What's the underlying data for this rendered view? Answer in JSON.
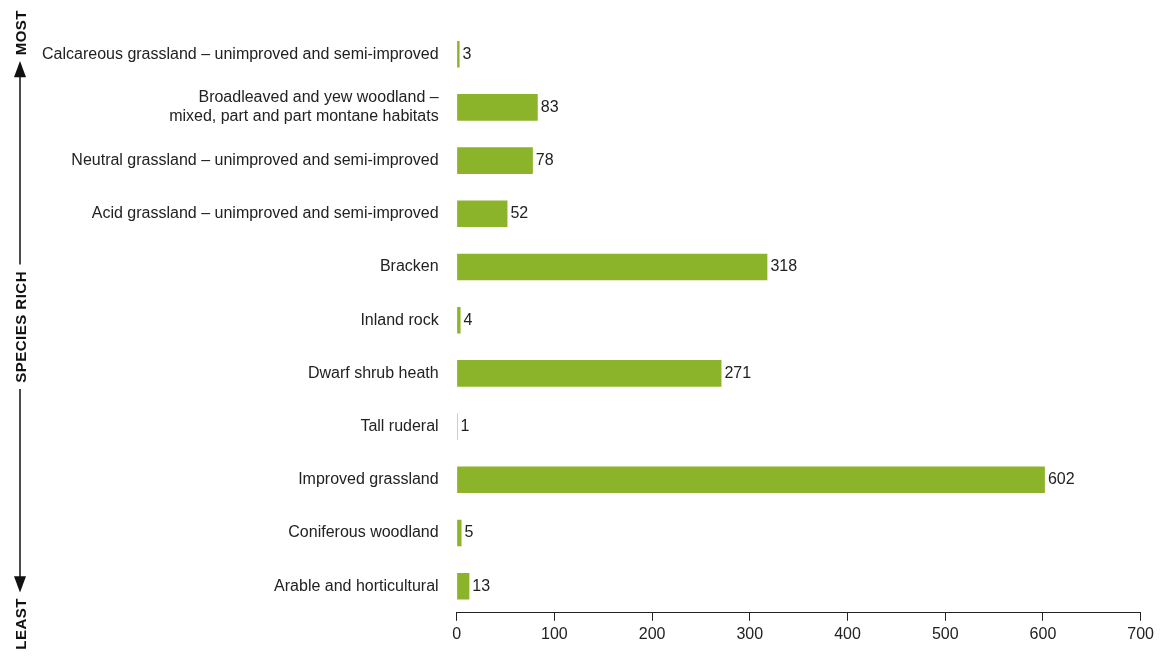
{
  "chart_data": {
    "type": "bar",
    "orientation": "horizontal",
    "categories": [
      "Calcareous grassland – unimproved and semi-improved",
      "Broadleaved and yew woodland –\nmixed, part and part montane habitats",
      "Neutral grassland – unimproved and semi-improved",
      "Acid grassland – unimproved and semi-improved",
      "Bracken",
      "Inland rock",
      "Dwarf shrub heath",
      "Tall ruderal",
      "Improved grassland",
      "Coniferous woodland",
      "Arable and horticultural"
    ],
    "values": [
      3,
      83,
      78,
      52,
      318,
      4,
      271,
      1,
      602,
      5,
      13
    ],
    "color": "#8cb42b",
    "xlim": [
      0,
      700
    ],
    "xticks": [
      0,
      100,
      200,
      300,
      400,
      500,
      600,
      700
    ],
    "data_labels": true,
    "grid": false,
    "legend": false,
    "annotations": [
      "MOST",
      "SPECIES RICH",
      "LEAST"
    ]
  }
}
